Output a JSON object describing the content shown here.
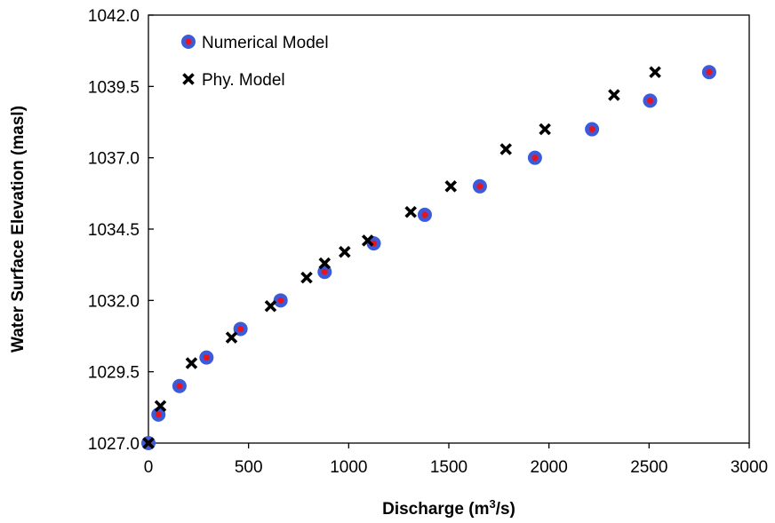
{
  "chart_data": {
    "type": "scatter",
    "xlabel": "Discharge (m",
    "xlabel_sup": "3",
    "xlabel_end": "/s)",
    "ylabel": "Water Surface Elevation (masl)",
    "xlim": [
      0,
      3000
    ],
    "ylim": [
      1027.0,
      1042.0
    ],
    "x_ticks": [
      0,
      500,
      1000,
      1500,
      2000,
      2500,
      3000
    ],
    "x_tick_labels": [
      "0",
      "500",
      "1000",
      "1500",
      "2000",
      "2500",
      "3000"
    ],
    "y_ticks": [
      1027.0,
      1029.5,
      1032.0,
      1034.5,
      1037.0,
      1039.5,
      1042.0
    ],
    "y_tick_labels": [
      "1027.0",
      "1029.5",
      "1032.0",
      "1034.5",
      "1037.0",
      "1039.5",
      "1042.0"
    ],
    "grid": false,
    "legend_position": "top-left",
    "series": [
      {
        "name": "Numerical Model",
        "marker": "circle",
        "color": "#3b5bdb",
        "inner_color": "#e8141c",
        "points": [
          [
            0,
            1027.0
          ],
          [
            50,
            1028.0
          ],
          [
            155,
            1029.0
          ],
          [
            290,
            1030.0
          ],
          [
            460,
            1031.0
          ],
          [
            660,
            1032.0
          ],
          [
            880,
            1033.0
          ],
          [
            1125,
            1034.0
          ],
          [
            1380,
            1035.0
          ],
          [
            1655,
            1036.0
          ],
          [
            1930,
            1037.0
          ],
          [
            2215,
            1038.0
          ],
          [
            2505,
            1039.0
          ],
          [
            2800,
            1040.0
          ]
        ]
      },
      {
        "name": "Phy. Model",
        "marker": "x",
        "color": "#000000",
        "points": [
          [
            0,
            1027.0
          ],
          [
            60,
            1028.3
          ],
          [
            215,
            1029.8
          ],
          [
            415,
            1030.7
          ],
          [
            610,
            1031.8
          ],
          [
            790,
            1032.8
          ],
          [
            880,
            1033.3
          ],
          [
            980,
            1033.7
          ],
          [
            1095,
            1034.1
          ],
          [
            1310,
            1035.1
          ],
          [
            1510,
            1036.0
          ],
          [
            1785,
            1037.3
          ],
          [
            1980,
            1038.0
          ],
          [
            2325,
            1039.2
          ],
          [
            2530,
            1040.0
          ]
        ]
      }
    ]
  }
}
